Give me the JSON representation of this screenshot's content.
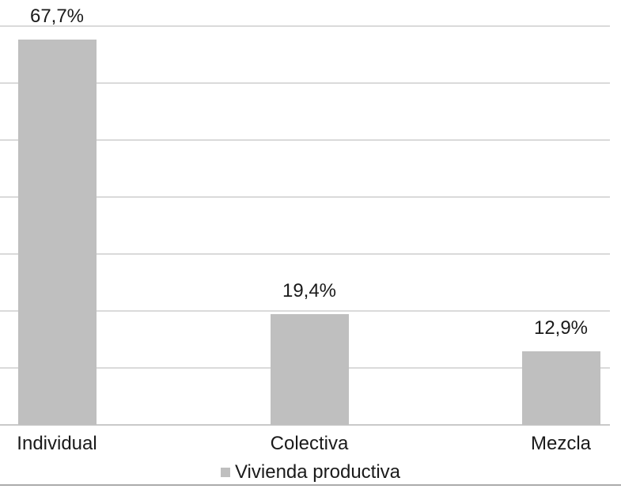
{
  "chart_data": {
    "type": "bar",
    "title": "",
    "xlabel": "",
    "ylabel": "",
    "categories": [
      "Individual",
      "Colectiva",
      "Mezcla"
    ],
    "series": [
      {
        "name": "Vivienda productiva",
        "values": [
          67.7,
          19.4,
          12.9
        ]
      }
    ],
    "value_labels": [
      "67,7%",
      "19,4%",
      "12,9%"
    ],
    "value_unit": "percent",
    "ylim": [
      0,
      70
    ],
    "gridline_step": 10,
    "grid": "horizontal-only",
    "y_tick_labels_visible": false,
    "legend_position": "bottom-center",
    "legend_entries": [
      "Vivienda productiva"
    ],
    "colors": {
      "bar_fill": "#bfbfbf",
      "gridline": "#dadada",
      "axis_line": "#c9c9c9",
      "text": "#1a1a1a",
      "legend_swatch": "#bfbfbf",
      "bottom_rule": "#ababab",
      "background": "#ffffff"
    }
  }
}
